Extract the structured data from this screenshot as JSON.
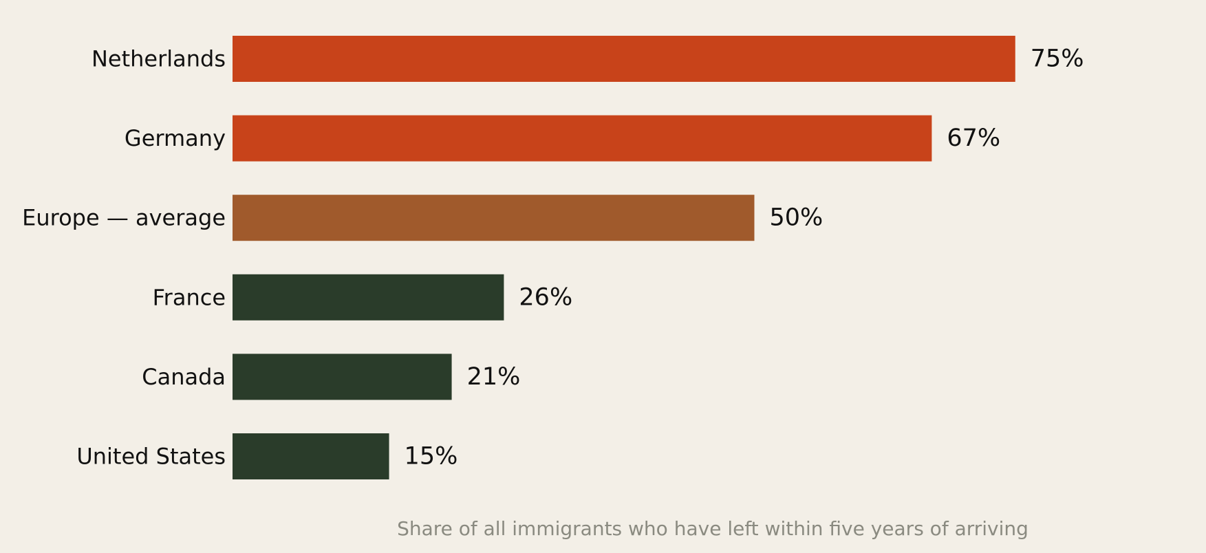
{
  "chart_data": {
    "type": "bar",
    "orientation": "horizontal",
    "categories": [
      "Netherlands",
      "Germany",
      "Europe — average",
      "France",
      "Canada",
      "United States"
    ],
    "values": [
      75,
      67,
      50,
      26,
      21,
      15
    ],
    "value_labels": [
      "75%",
      "67%",
      "50%",
      "26%",
      "21%",
      "15%"
    ],
    "bar_colors": [
      "#c8431a",
      "#c8431a",
      "#a05a2c",
      "#2a3c2a",
      "#2a3c2a",
      "#2a3c2a"
    ],
    "xlabel": "Share of all immigrants who have left within five years of arriving",
    "xlim": [
      0,
      100
    ],
    "grid": false,
    "background": "#f3efe7"
  }
}
